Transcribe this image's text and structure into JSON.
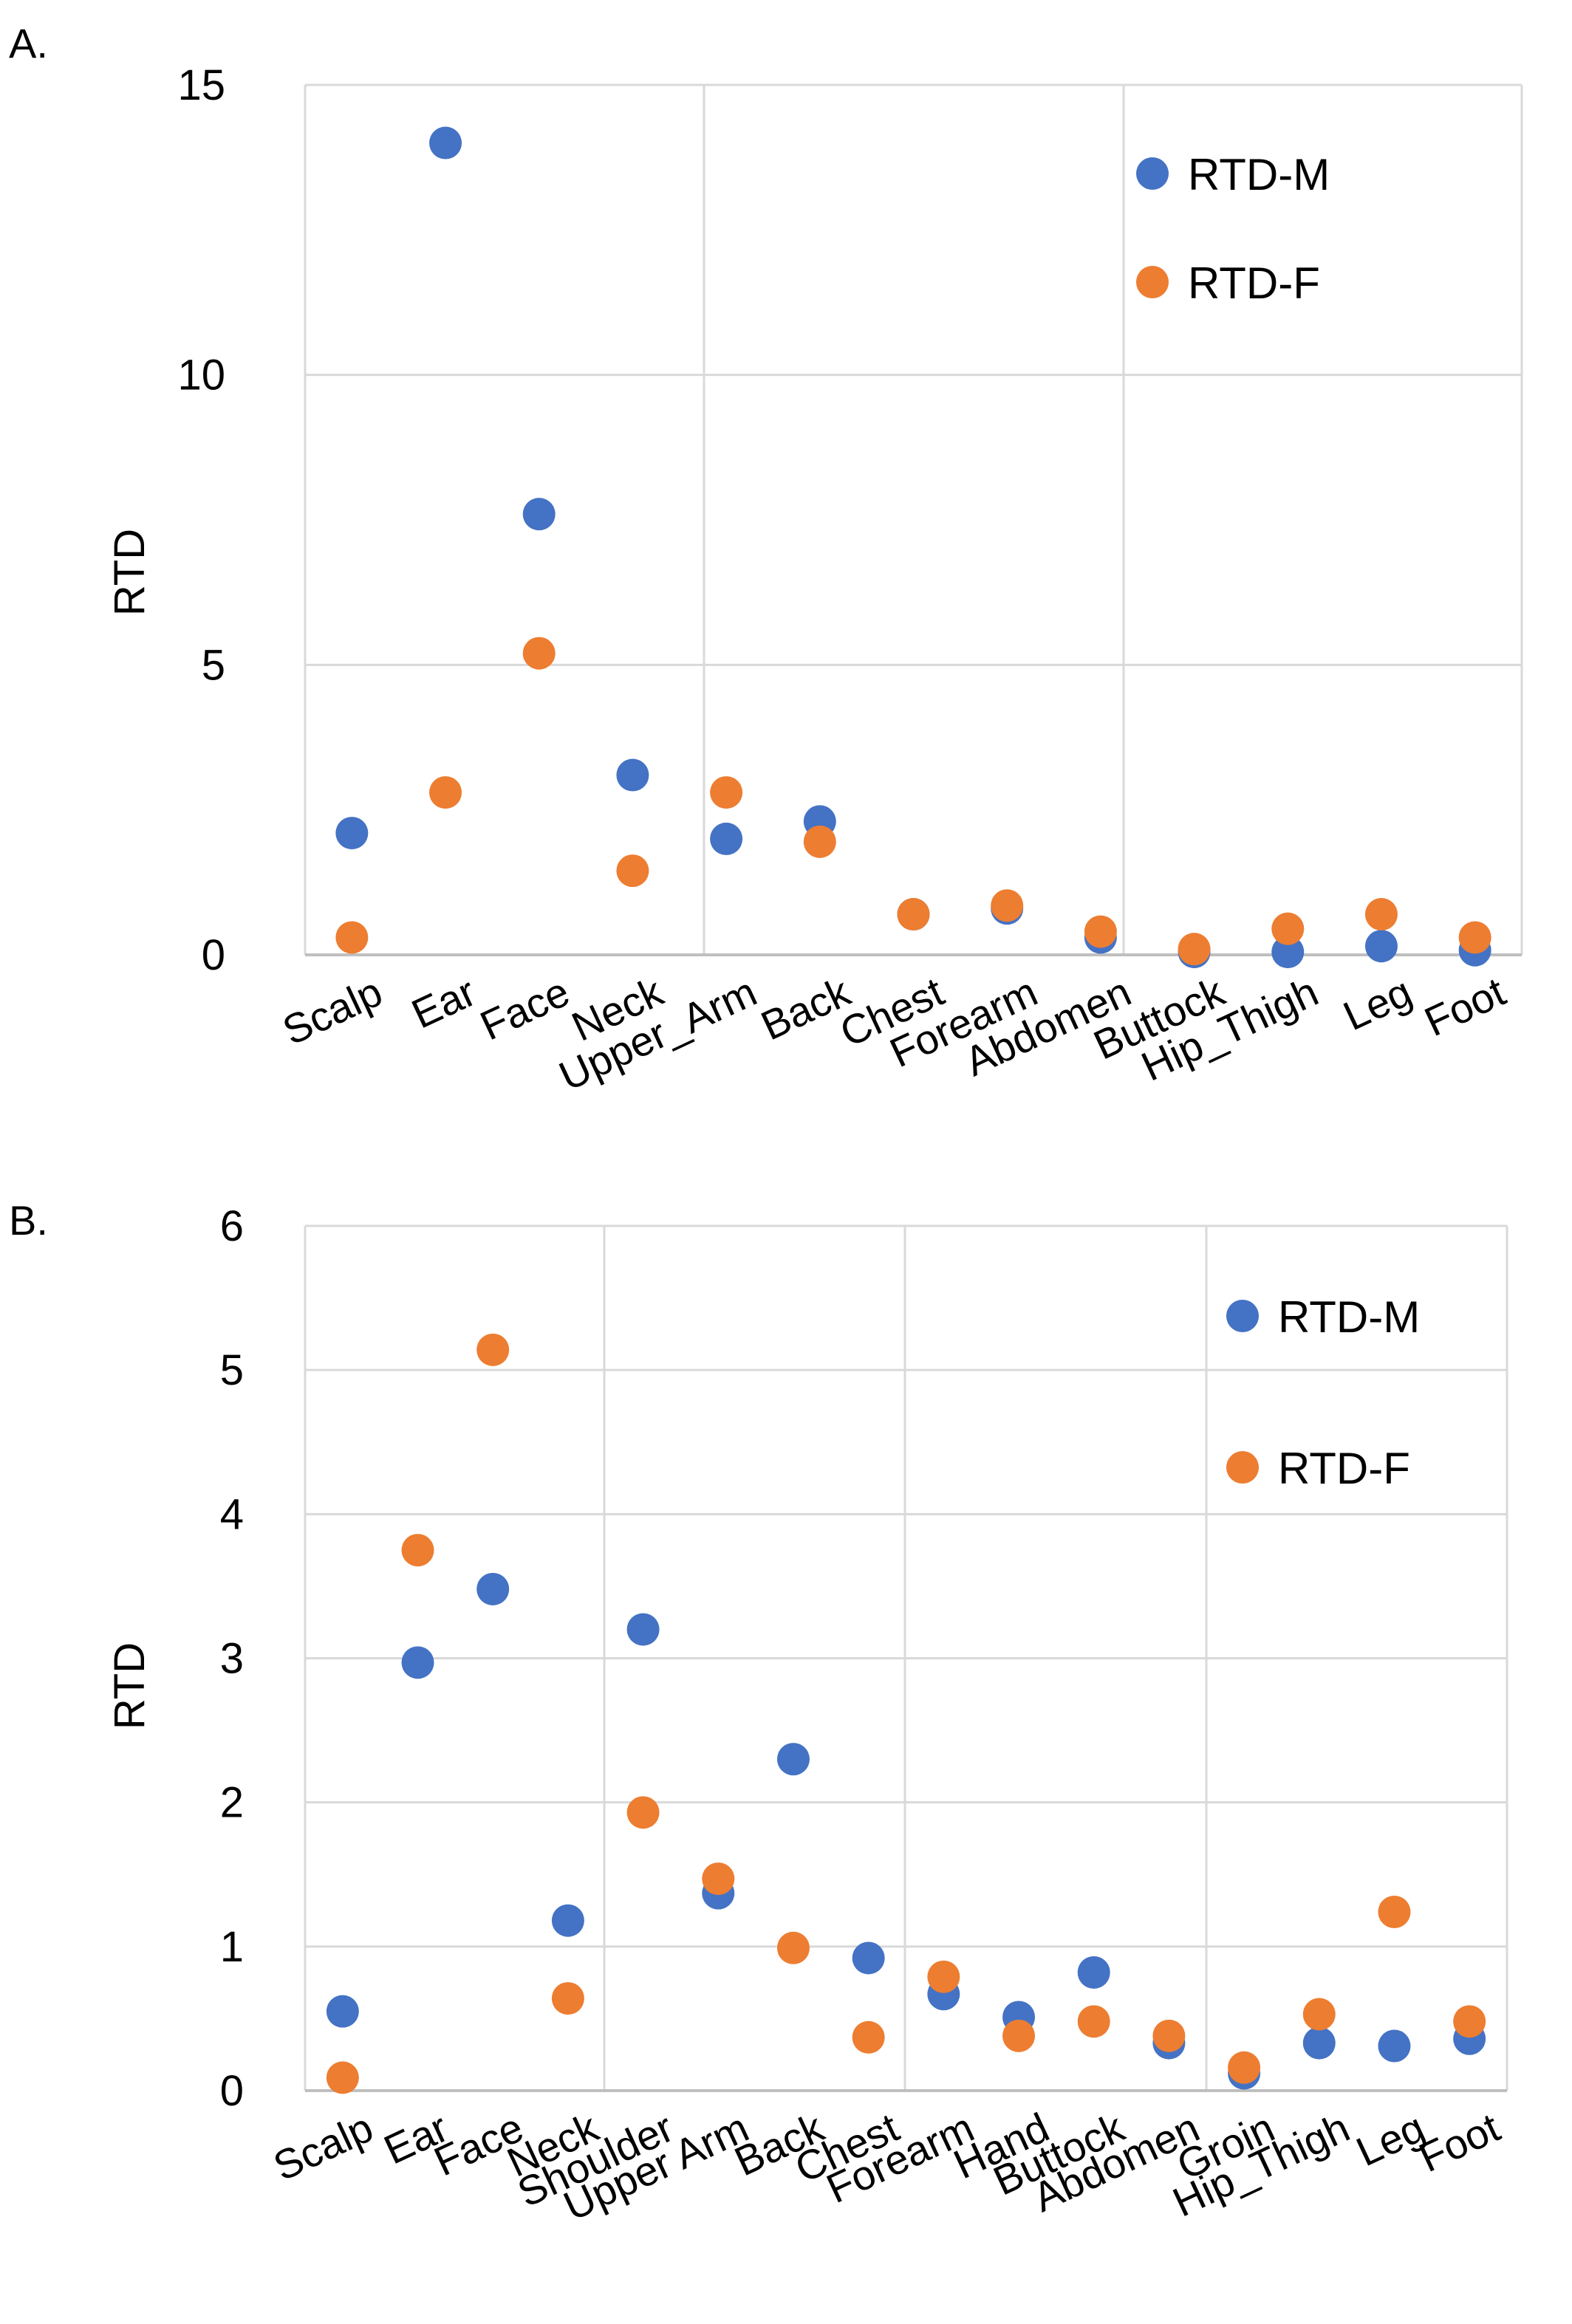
{
  "chart_data": [
    {
      "panel_label": "A.",
      "type": "scatter",
      "title": "",
      "xlabel": "",
      "ylabel": "RTD",
      "ylim": [
        0,
        15
      ],
      "yticks": [
        "0",
        "5",
        "10",
        "15"
      ],
      "grid": true,
      "legend_position": "top-right",
      "categories": [
        "Scalp",
        "Ear",
        "Face",
        "Neck",
        "Upper_Arm",
        "Back",
        "Chest",
        "Forearm",
        "Abdomen",
        "Buttock",
        "Hip_Thigh",
        "Leg",
        "Foot"
      ],
      "series": [
        {
          "name": "RTD-M",
          "color": "#4472C4",
          "values": [
            2.1,
            14.0,
            7.6,
            3.1,
            2.0,
            2.3,
            0.7,
            0.8,
            0.3,
            0.05,
            0.05,
            0.15,
            0.08
          ]
        },
        {
          "name": "RTD-F",
          "color": "#ED7D31",
          "values": [
            0.3,
            2.8,
            5.2,
            1.45,
            2.8,
            1.95,
            0.7,
            0.85,
            0.4,
            0.1,
            0.45,
            0.7,
            0.3
          ]
        }
      ]
    },
    {
      "panel_label": "B.",
      "type": "scatter",
      "title": "",
      "xlabel": "",
      "ylabel": "RTD",
      "ylim": [
        0,
        6
      ],
      "yticks": [
        "0",
        "1",
        "2",
        "3",
        "4",
        "5",
        "6"
      ],
      "grid": true,
      "legend_position": "top-right",
      "categories": [
        "Scalp",
        "Ear",
        "Face",
        "Neck",
        "Shoulder",
        "Upper Arm",
        "Back",
        "Chest",
        "Forearm",
        "Hand",
        "Buttock",
        "Abdomen",
        "Groin",
        "Hip_Thigh",
        "Leg",
        "Foot"
      ],
      "series": [
        {
          "name": "RTD-M",
          "color": "#4472C4",
          "values": [
            0.55,
            2.97,
            3.48,
            1.18,
            3.2,
            1.37,
            2.3,
            0.92,
            0.67,
            0.51,
            0.82,
            0.33,
            0.12,
            0.33,
            0.31,
            0.36
          ]
        },
        {
          "name": "RTD-F",
          "color": "#ED7D31",
          "values": [
            0.09,
            3.75,
            5.14,
            0.64,
            1.93,
            1.47,
            0.99,
            0.37,
            0.79,
            0.38,
            0.48,
            0.38,
            0.16,
            0.53,
            1.24,
            0.48
          ]
        }
      ]
    }
  ]
}
